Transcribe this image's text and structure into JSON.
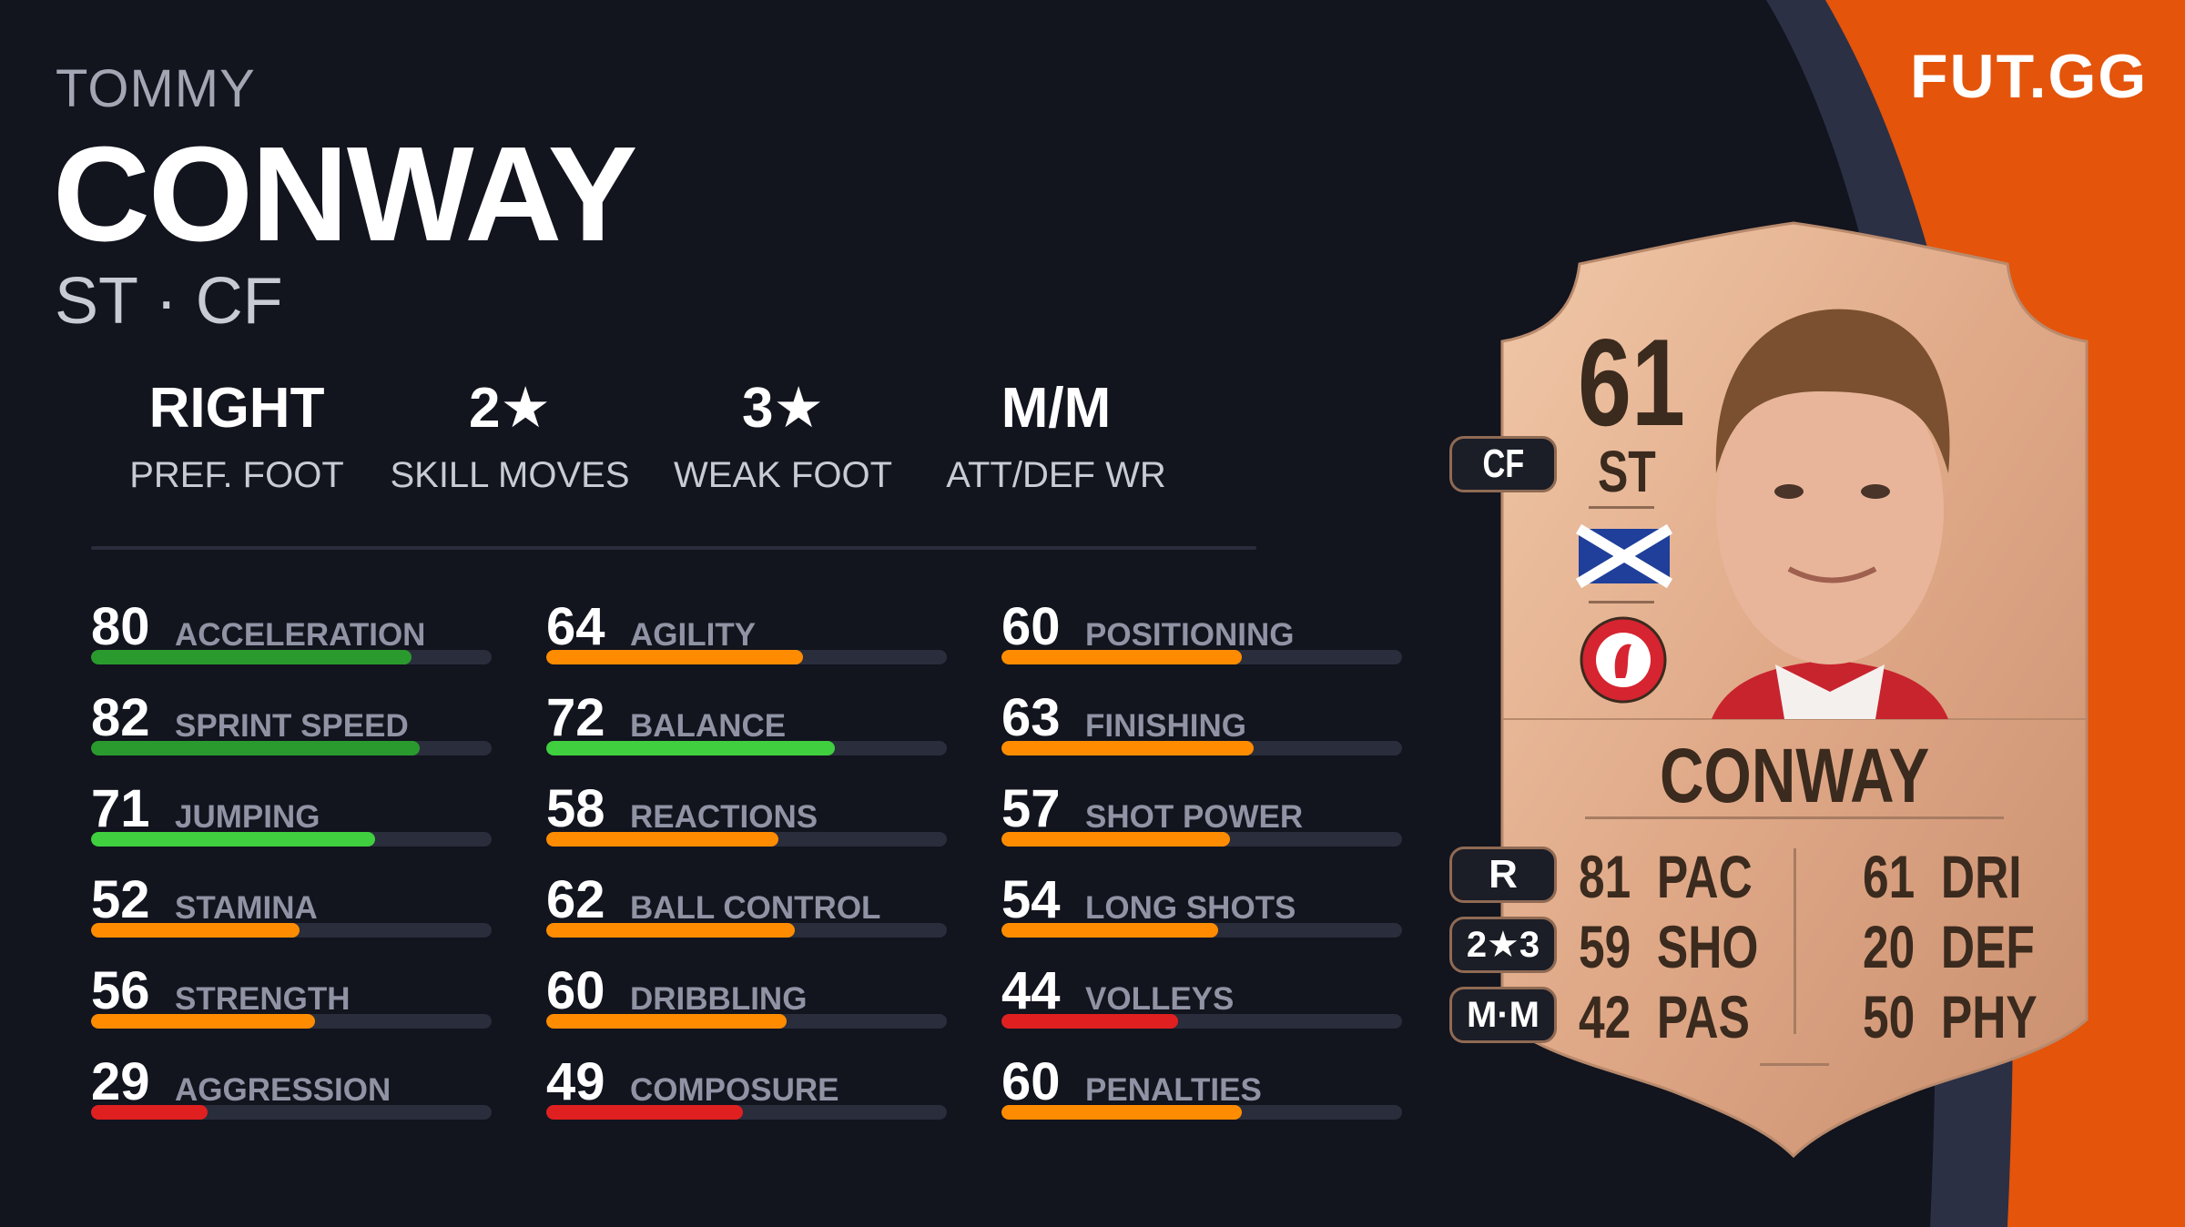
{
  "brand": {
    "logo": "FUT.GG",
    "accent": "#e4540b"
  },
  "player": {
    "first_name": "TOMMY",
    "last_name": "CONWAY",
    "positions": "ST · CF"
  },
  "info": [
    {
      "value": "RIGHT",
      "label": "PREF. FOOT"
    },
    {
      "value": "2★",
      "label": "SKILL MOVES"
    },
    {
      "value": "3★",
      "label": "WEAK FOOT"
    },
    {
      "value": "M/M",
      "label": "ATT/DEF WR"
    }
  ],
  "bar_colors": {
    "elite": "#2a9a2e",
    "good": "#3fcf3f",
    "average": "#ff8c00",
    "poor": "#e02020",
    "track": "#2a2d3b"
  },
  "stats": [
    [
      {
        "value": 80,
        "label": "ACCELERATION"
      },
      {
        "value": 82,
        "label": "SPRINT SPEED"
      },
      {
        "value": 71,
        "label": "JUMPING"
      },
      {
        "value": 52,
        "label": "STAMINA"
      },
      {
        "value": 56,
        "label": "STRENGTH"
      },
      {
        "value": 29,
        "label": "AGGRESSION"
      }
    ],
    [
      {
        "value": 64,
        "label": "AGILITY"
      },
      {
        "value": 72,
        "label": "BALANCE"
      },
      {
        "value": 58,
        "label": "REACTIONS"
      },
      {
        "value": 62,
        "label": "BALL CONTROL"
      },
      {
        "value": 60,
        "label": "DRIBBLING"
      },
      {
        "value": 49,
        "label": "COMPOSURE"
      }
    ],
    [
      {
        "value": 60,
        "label": "POSITIONING"
      },
      {
        "value": 63,
        "label": "FINISHING"
      },
      {
        "value": 57,
        "label": "SHOT POWER"
      },
      {
        "value": 54,
        "label": "LONG SHOTS"
      },
      {
        "value": 44,
        "label": "VOLLEYS"
      },
      {
        "value": 60,
        "label": "PENALTIES"
      }
    ]
  ],
  "card": {
    "rating": "61",
    "position": "ST",
    "alt_position": "CF",
    "name": "CONWAY",
    "foot": "R",
    "skill_weak": "2★3",
    "work_rates": "M·M",
    "nation": "Scotland",
    "club": "Bristol City",
    "stats": [
      {
        "value": "81",
        "label": "PAC"
      },
      {
        "value": "59",
        "label": "SHO"
      },
      {
        "value": "42",
        "label": "PAS"
      },
      {
        "value": "61",
        "label": "DRI"
      },
      {
        "value": "20",
        "label": "DEF"
      },
      {
        "value": "50",
        "label": "PHY"
      }
    ]
  }
}
